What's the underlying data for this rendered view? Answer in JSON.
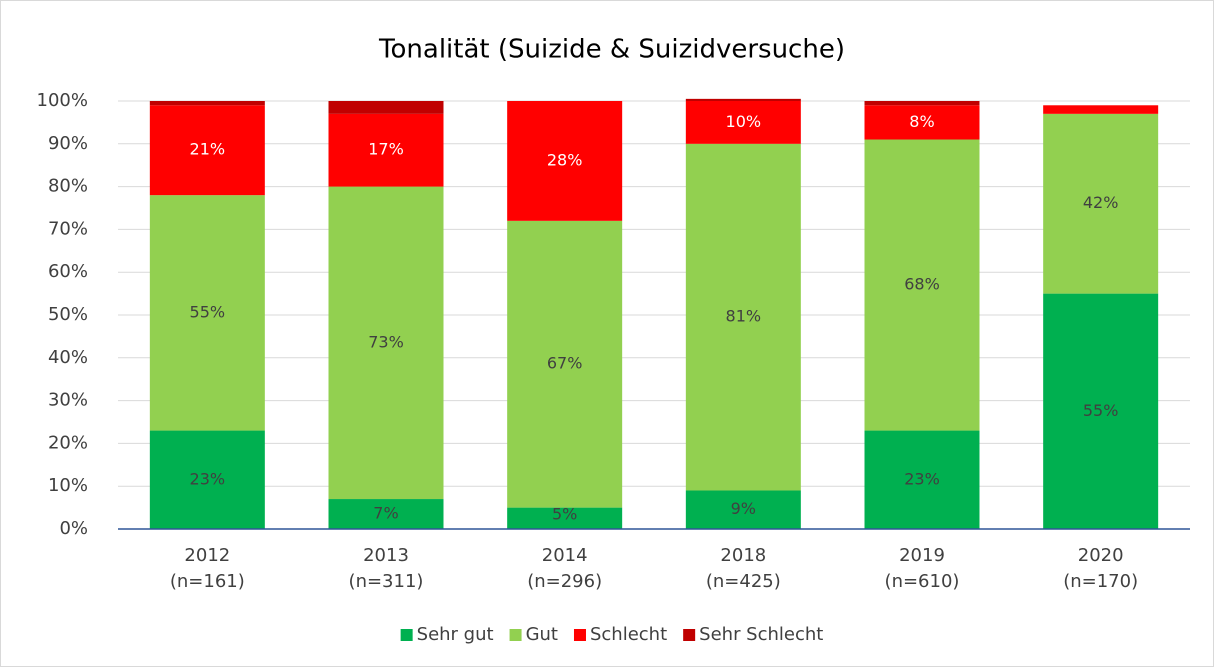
{
  "chart_data": {
    "type": "stacked_bar",
    "title": "Tonalität (Suizide & Suizidversuche)",
    "categories": [
      "2012",
      "2013",
      "2014",
      "2018",
      "2019",
      "2020"
    ],
    "category_notes": [
      "(n=161)",
      "(n=311)",
      "(n=296)",
      "(n=425)",
      "(n=610)",
      "(n=170)"
    ],
    "series": [
      {
        "name": "Sehr gut",
        "color": "#00b050",
        "values": [
          23,
          7,
          5,
          9,
          23,
          55
        ],
        "value_labels": [
          "23%",
          "7%",
          "5%",
          "9%",
          "23%",
          "55%"
        ]
      },
      {
        "name": "Gut",
        "color": "#92d050",
        "values": [
          55,
          73,
          67,
          81,
          68,
          42
        ],
        "value_labels": [
          "55%",
          "73%",
          "67%",
          "81%",
          "68%",
          "42%"
        ]
      },
      {
        "name": "Schlecht",
        "color": "#ff0000",
        "values": [
          21,
          17,
          28,
          10,
          8,
          2
        ],
        "value_labels": [
          "21%",
          "17%",
          "28%",
          "10%",
          "8%",
          null
        ]
      },
      {
        "name": "Sehr Schlecht",
        "color": "#c00000",
        "values": [
          1,
          3,
          0,
          0.5,
          1,
          0
        ],
        "value_labels": [
          null,
          null,
          null,
          null,
          null,
          null
        ]
      }
    ],
    "ylim": [
      0,
      100
    ],
    "yticks": [
      {
        "value": 0,
        "label": "0%"
      },
      {
        "value": 10,
        "label": "10%"
      },
      {
        "value": 20,
        "label": "20%"
      },
      {
        "value": 30,
        "label": "30%"
      },
      {
        "value": 40,
        "label": "40%"
      },
      {
        "value": 50,
        "label": "50%"
      },
      {
        "value": 60,
        "label": "60%"
      },
      {
        "value": 70,
        "label": "70%"
      },
      {
        "value": 80,
        "label": "80%"
      },
      {
        "value": 90,
        "label": "90%"
      },
      {
        "value": 100,
        "label": "100%"
      }
    ],
    "grid": true,
    "legend": "bottom"
  }
}
